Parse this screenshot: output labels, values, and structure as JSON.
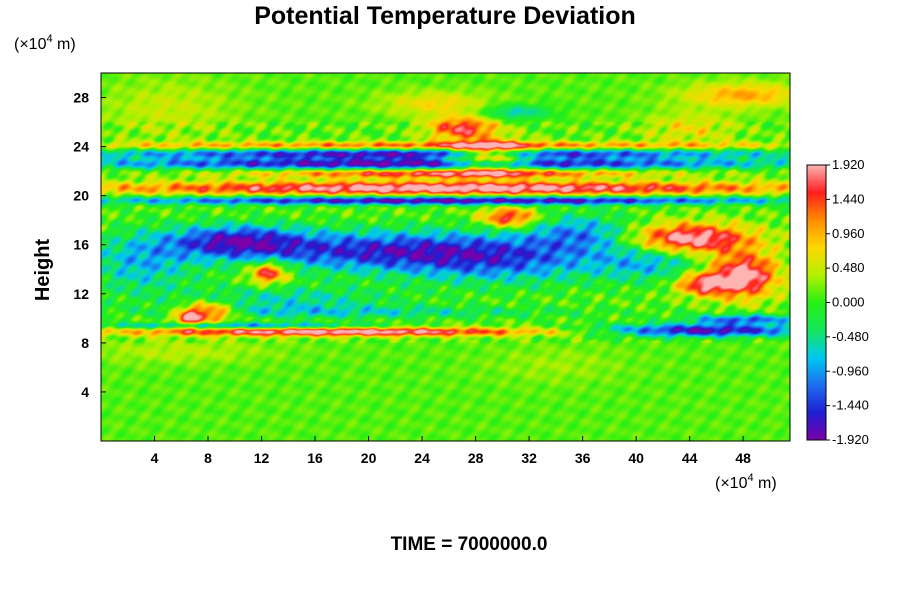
{
  "chart_data": {
    "type": "heatmap",
    "title": "Potential Temperature Deviation",
    "ylabel": "Height",
    "xunit_mantissa": "(×10",
    "xunit_exponent": "4",
    "xunit_suffix": " m)",
    "yunit_mantissa": "(×10",
    "yunit_exponent": "4",
    "yunit_suffix": " m)",
    "xlim": [
      0,
      51.5
    ],
    "ylim": [
      0,
      30
    ],
    "xticks": [
      4,
      8,
      12,
      16,
      20,
      24,
      28,
      32,
      36,
      40,
      44,
      48
    ],
    "yticks": [
      4,
      8,
      12,
      16,
      20,
      24,
      28
    ],
    "colorbar": {
      "min": -1.92,
      "max": 1.92,
      "tick_values": [
        1.92,
        1.44,
        0.96,
        0.48,
        0.0,
        -0.48,
        -0.96,
        -1.44,
        -1.92
      ],
      "tick_labels": [
        "1.920",
        "1.440",
        "0.960",
        "0.480",
        "0.000",
        "-0.480",
        "-0.960",
        "-1.440",
        "-1.920"
      ],
      "colors_low_to_high": [
        "#7a00a8",
        "#1e1ed2",
        "#1e6ef0",
        "#00c8f0",
        "#14e65a",
        "#28f014",
        "#b4f000",
        "#ffd700",
        "#ff8c00",
        "#ff1e1e",
        "#ffb4b4"
      ]
    },
    "features": [
      {
        "x": 26,
        "y": 20.6,
        "sx": 26,
        "sy": 0.55,
        "v": 2.0
      },
      {
        "x": 26,
        "y": 21.8,
        "sx": 14,
        "sy": 0.35,
        "v": 1.6
      },
      {
        "x": 26,
        "y": 19.6,
        "sx": 26,
        "sy": 0.35,
        "v": -2.0
      },
      {
        "x": 24,
        "y": 22.6,
        "sx": 26,
        "sy": 0.45,
        "v": -2.0
      },
      {
        "x": 24,
        "y": 23.4,
        "sx": 26,
        "sy": 0.4,
        "v": -1.8
      },
      {
        "x": 25,
        "y": 24.1,
        "sx": 26,
        "sy": 0.3,
        "v": 1.2
      },
      {
        "x": 29,
        "y": 23.2,
        "sx": 3,
        "sy": 1.2,
        "v": 2.0
      },
      {
        "x": 27,
        "y": 25.5,
        "sx": 2.5,
        "sy": 0.9,
        "v": 1.5
      },
      {
        "x": 30.5,
        "y": 18.2,
        "sx": 2.0,
        "sy": 0.8,
        "v": 1.6
      },
      {
        "x": 44,
        "y": 16.5,
        "sx": 4.5,
        "sy": 1.2,
        "v": 2.0
      },
      {
        "x": 48,
        "y": 13.5,
        "sx": 2.5,
        "sy": 1.8,
        "v": 2.0
      },
      {
        "x": 45,
        "y": 12.8,
        "sx": 2.0,
        "sy": 0.9,
        "v": 1.6
      },
      {
        "x": 48,
        "y": 28.2,
        "sx": 4.5,
        "sy": 1.0,
        "v": 0.9
      },
      {
        "x": 44,
        "y": 25.5,
        "sx": 3.5,
        "sy": 1.3,
        "v": 0.55
      },
      {
        "x": 31,
        "y": 26.8,
        "sx": 2.5,
        "sy": 0.6,
        "v": -0.8
      },
      {
        "x": 25,
        "y": 27.5,
        "sx": 4,
        "sy": 1.0,
        "v": 0.6
      },
      {
        "x": 5,
        "y": 27.0,
        "sx": 5,
        "sy": 2.5,
        "v": 0.35
      },
      {
        "x": 20,
        "y": 15.5,
        "sx": 10,
        "sy": 1.6,
        "v": -1.5
      },
      {
        "x": 10,
        "y": 16.3,
        "sx": 5,
        "sy": 1.3,
        "v": -1.6
      },
      {
        "x": 30,
        "y": 14.8,
        "sx": 8,
        "sy": 2.0,
        "v": -1.2
      },
      {
        "x": 36,
        "y": 17.0,
        "sx": 4,
        "sy": 1.5,
        "v": -1.0
      },
      {
        "x": 41,
        "y": 14.5,
        "sx": 4,
        "sy": 1.5,
        "v": -0.8
      },
      {
        "x": 3,
        "y": 14.5,
        "sx": 4,
        "sy": 2.5,
        "v": -0.9
      },
      {
        "x": 14,
        "y": 11.5,
        "sx": 8,
        "sy": 1.2,
        "v": -0.7
      },
      {
        "x": 12.5,
        "y": 13.7,
        "sx": 1.4,
        "sy": 0.9,
        "v": 1.7
      },
      {
        "x": 8,
        "y": 10.5,
        "sx": 2.0,
        "sy": 0.8,
        "v": 1.7
      },
      {
        "x": 6.5,
        "y": 10.0,
        "sx": 1.0,
        "sy": 0.7,
        "v": 1.4
      },
      {
        "x": 18,
        "y": 8.9,
        "sx": 16,
        "sy": 0.35,
        "v": 2.0
      },
      {
        "x": 10,
        "y": 9.4,
        "sx": 10,
        "sy": 0.25,
        "v": -1.2
      },
      {
        "x": 45,
        "y": 9.0,
        "sx": 8,
        "sy": 0.5,
        "v": -2.0
      },
      {
        "x": 48,
        "y": 9.9,
        "sx": 4,
        "sy": 0.4,
        "v": -1.4
      },
      {
        "x": 20,
        "y": 10.5,
        "sx": 16,
        "sy": 0.5,
        "v": -0.6
      },
      {
        "x": 6,
        "y": 7.3,
        "sx": 7,
        "sy": 1.0,
        "v": 0.3
      },
      {
        "x": 34,
        "y": 6.2,
        "sx": 5,
        "sy": 1.5,
        "v": 0.2
      }
    ]
  },
  "footer": {
    "time_label": "TIME = 7000000.0"
  }
}
